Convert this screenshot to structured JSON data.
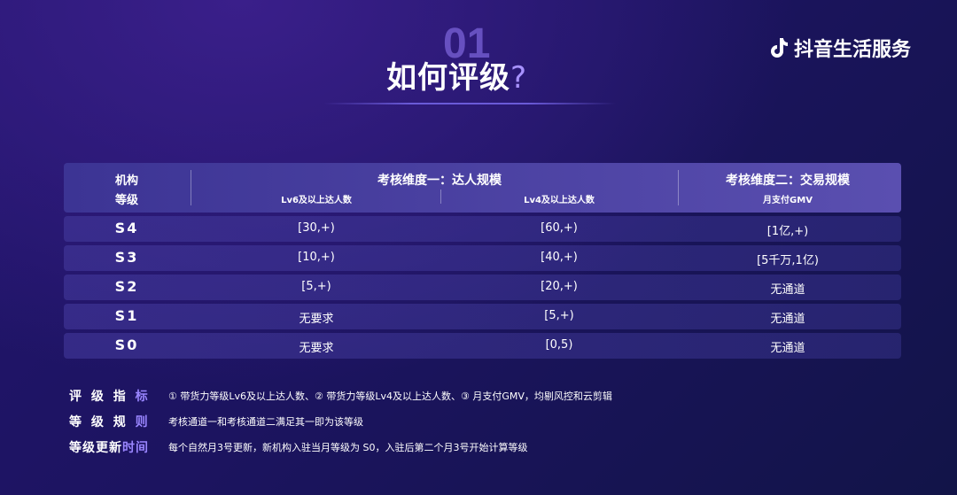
{
  "header": {
    "section_number": "01",
    "title": "如何评级",
    "title_mark": "?",
    "brand": "抖音生活服务",
    "brand_icon": "douyin-note-icon"
  },
  "table": {
    "col_level": [
      "机构",
      "等级"
    ],
    "group1": "考核维度一：达人规模",
    "group1_sub": [
      "Lv6及以上达人数",
      "Lv4及以上达人数"
    ],
    "group2": "考核维度二：交易规模",
    "group2_sub": "月支付GMV",
    "rows": [
      {
        "level": "S4",
        "lv6": "[30,+)",
        "lv4": "[60,+)",
        "gmv": "[1亿,+)"
      },
      {
        "level": "S3",
        "lv6": "[10,+)",
        "lv4": "[40,+)",
        "gmv": "[5千万,1亿)"
      },
      {
        "level": "S2",
        "lv6": "[5,+)",
        "lv4": "[20,+)",
        "gmv": "无通道"
      },
      {
        "level": "S1",
        "lv6": "无要求",
        "lv4": "[5,+)",
        "gmv": "无通道"
      },
      {
        "level": "S0",
        "lv6": "无要求",
        "lv4": "[0,5)",
        "gmv": "无通道"
      }
    ]
  },
  "notes": [
    {
      "label_a": "评 级 指 ",
      "label_b": "标",
      "text": "① 带货力等级Lv6及以上达人数、② 带货力等级Lv4及以上达人数、③ 月支付GMV，均剔风控和云剪辑"
    },
    {
      "label_a": "等 级 规 ",
      "label_b": "则",
      "text": "考核通道一和考核通道二满足其一即为该等级"
    },
    {
      "label_a": "等级更新",
      "label_b": "时间",
      "text": "每个自然月3号更新，新机构入驻当月等级为 S0，入驻后第二个月3号开始计算等级"
    }
  ]
}
